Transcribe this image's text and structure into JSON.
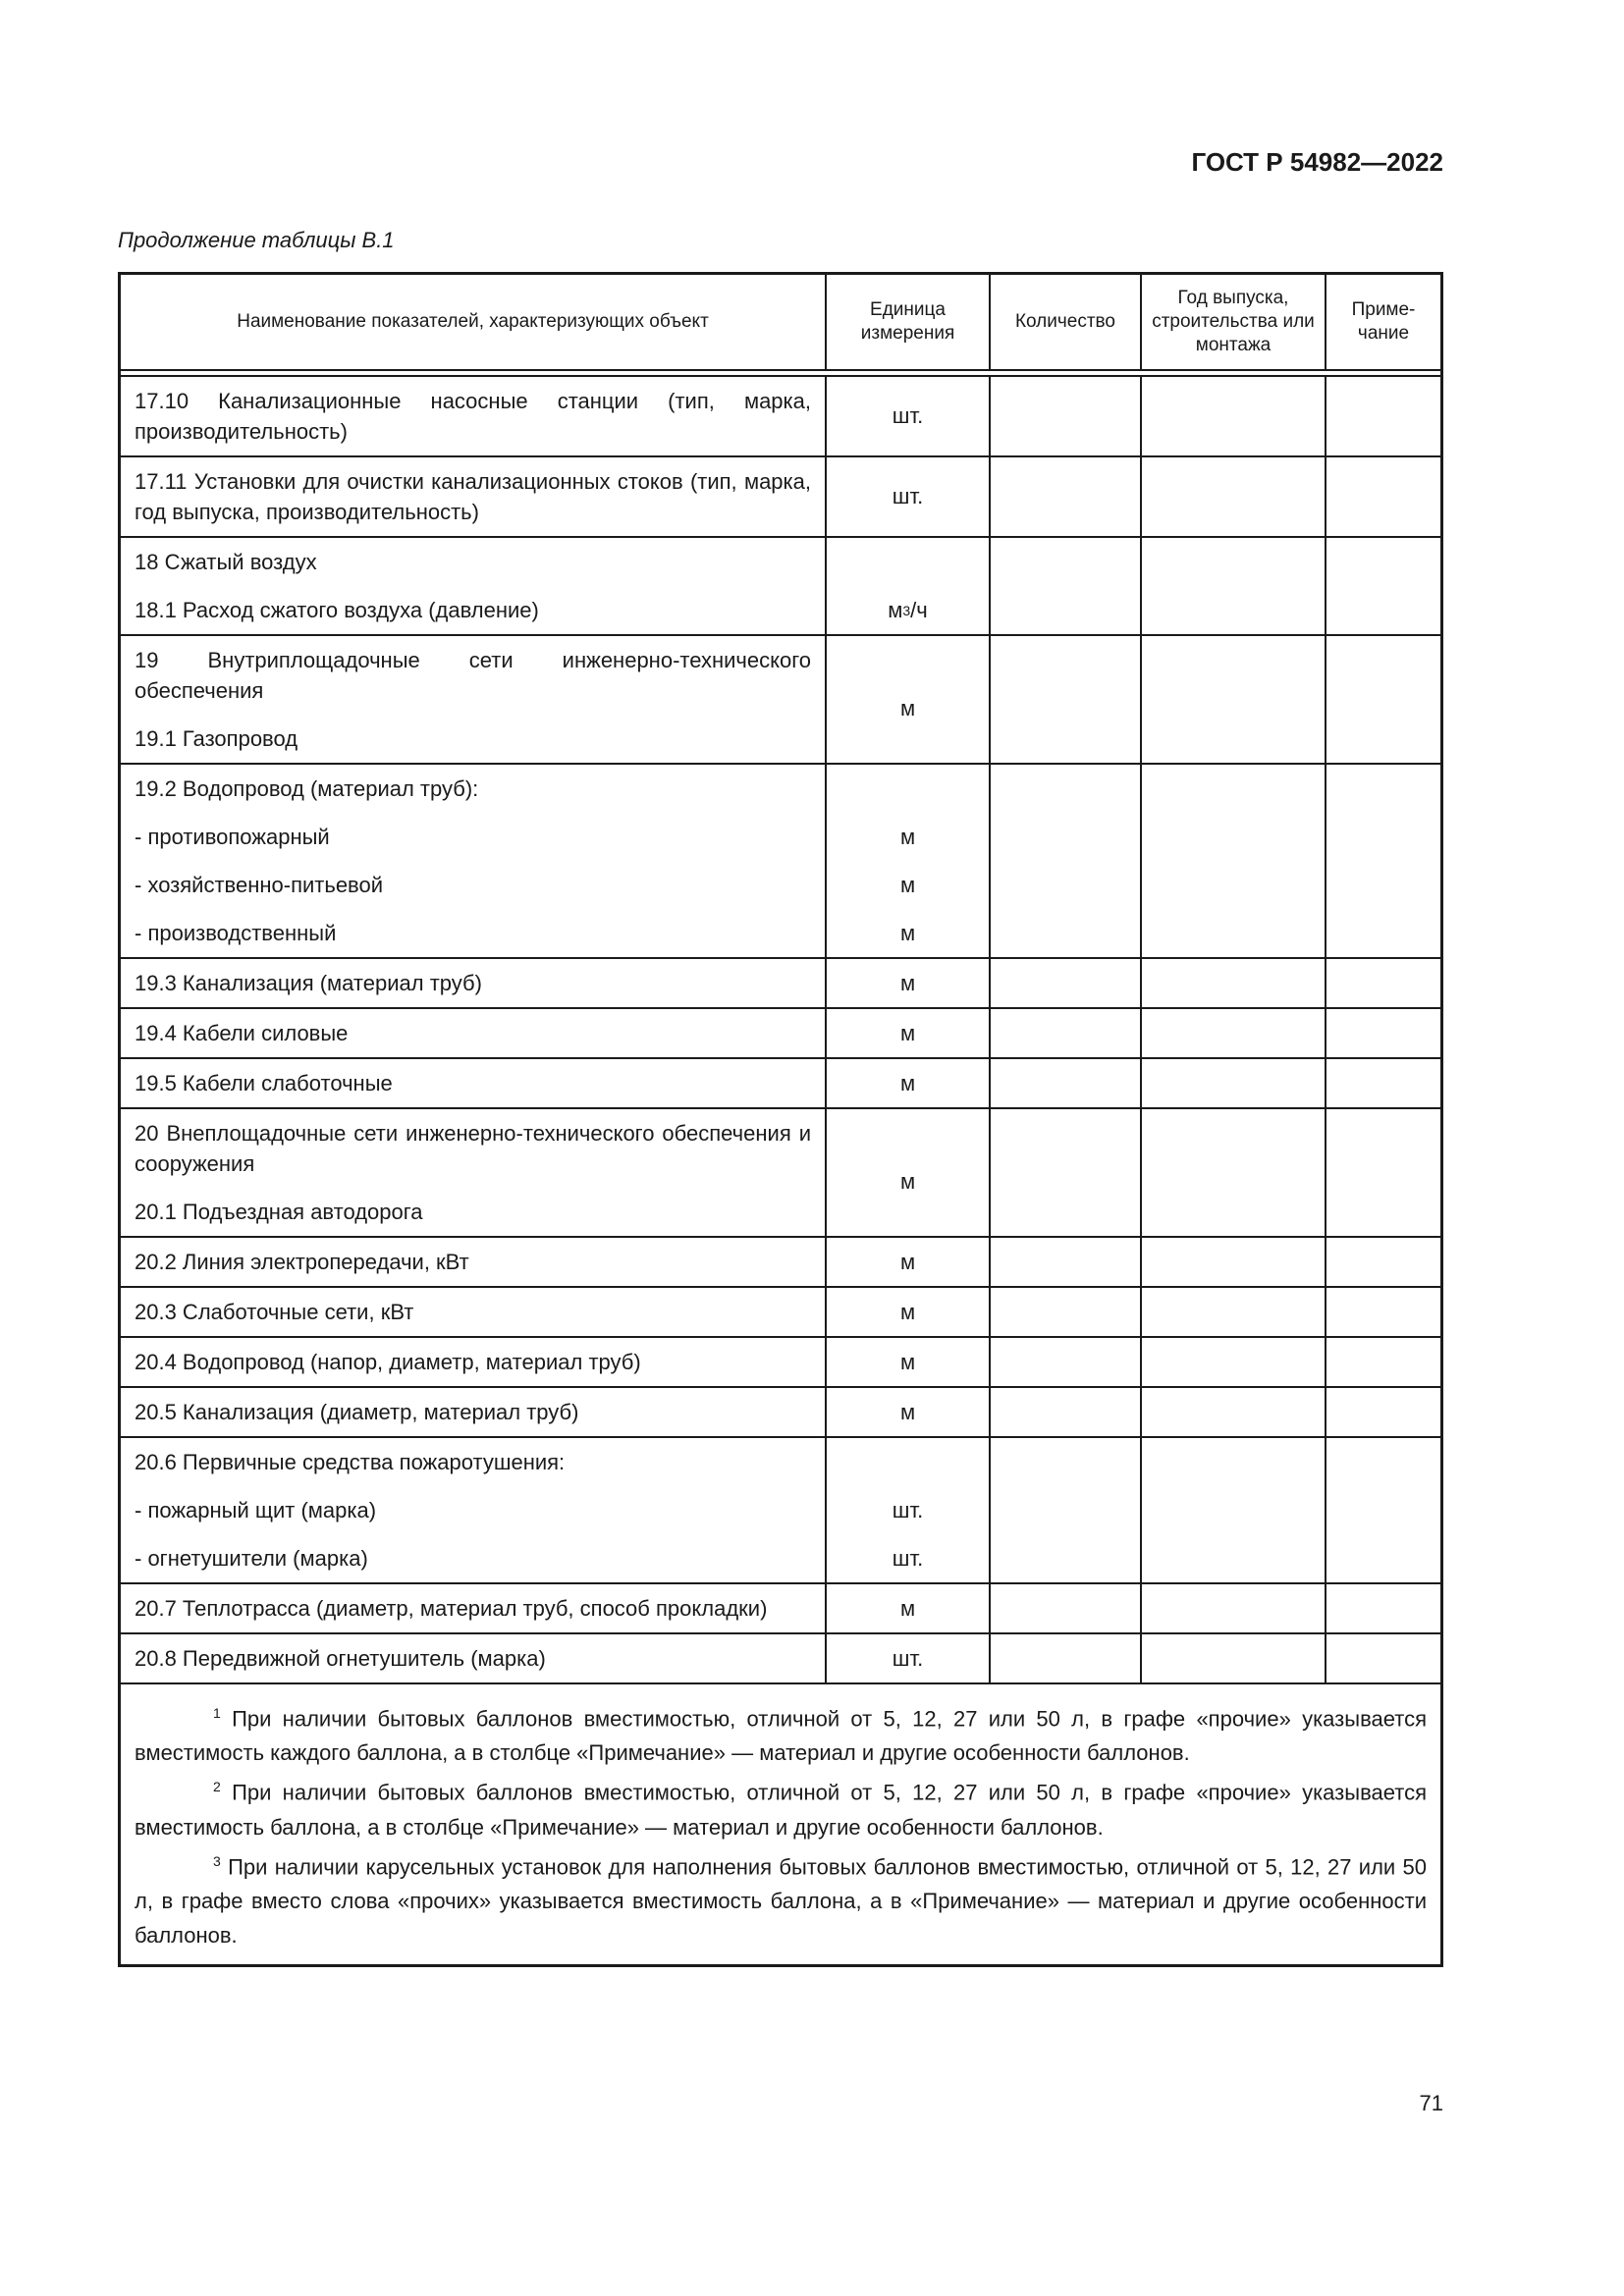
{
  "header": {
    "doc_code": "ГОСТ Р 54982—2022",
    "caption": "Продолжение таблицы В.1"
  },
  "table": {
    "columns": [
      "Наименование показателей, характеризующих объект",
      "Единица измерения",
      "Количество",
      "Год выпуска, строительства или монтажа",
      "Приме-чание"
    ],
    "rows": [
      {
        "items": [
          {
            "text": "17.10 Канализационные насосные станции (тип, марка, производительность)",
            "unit": "шт."
          }
        ]
      },
      {
        "items": [
          {
            "text": "17.11 Установки для очистки канализационных стоков (тип, марка, год выпуска, производительность)",
            "unit": "шт."
          }
        ]
      },
      {
        "items": [
          {
            "text": "18 Сжатый воздух",
            "unit": ""
          },
          {
            "text": "18.1 Расход сжатого воздуха (давление)",
            "unit": "м",
            "unit_sup": "3",
            "unit_tail": "/ч"
          }
        ]
      },
      {
        "items": [
          {
            "text": "19 Внутриплощадочные сети инженерно-технического обеспечения",
            "unit": ""
          },
          {
            "text": "19.1 Газопровод",
            "unit": "м"
          }
        ]
      },
      {
        "items": [
          {
            "text": "19.2 Водопровод (материал труб):",
            "unit": ""
          },
          {
            "text": "- противопожарный",
            "unit": "м"
          },
          {
            "text": "- хозяйственно-питьевой",
            "unit": "м"
          },
          {
            "text": "- производственный",
            "unit": "м"
          }
        ]
      },
      {
        "items": [
          {
            "text": "19.3 Канализация (материал труб)",
            "unit": "м"
          }
        ]
      },
      {
        "items": [
          {
            "text": "19.4 Кабели силовые",
            "unit": "м"
          }
        ]
      },
      {
        "items": [
          {
            "text": "19.5 Кабели слаботочные",
            "unit": "м"
          }
        ]
      },
      {
        "items": [
          {
            "text": "20 Внеплощадочные сети инженерно-технического обеспечения и сооружения",
            "unit": ""
          },
          {
            "text": "20.1 Подъездная автодорога",
            "unit": "м"
          }
        ]
      },
      {
        "items": [
          {
            "text": "20.2 Линия электропередачи, кВт",
            "unit": "м"
          }
        ]
      },
      {
        "items": [
          {
            "text": "20.3 Слаботочные сети, кВт",
            "unit": "м"
          }
        ]
      },
      {
        "items": [
          {
            "text": "20.4 Водопровод (напор, диаметр, материал труб)",
            "unit": "м"
          }
        ]
      },
      {
        "items": [
          {
            "text": "20.5 Канализация (диаметр, материал труб)",
            "unit": "м"
          }
        ]
      },
      {
        "items": [
          {
            "text": "20.6 Первичные средства пожаротушения:",
            "unit": ""
          },
          {
            "text": "- пожарный щит (марка)",
            "unit": "шт."
          },
          {
            "text": "- огнетушители (марка)",
            "unit": "шт."
          }
        ]
      },
      {
        "items": [
          {
            "text": "20.7 Теплотрасса (диаметр, материал труб, способ прокладки)",
            "unit": "м"
          }
        ]
      },
      {
        "items": [
          {
            "text": "20.8 Передвижной огнетушитель (марка)",
            "unit": "шт."
          }
        ]
      }
    ],
    "footnotes": [
      {
        "mark": "1",
        "text": " При наличии бытовых баллонов вместимостью, отличной от 5, 12, 27 или 50 л, в графе «прочие» указывается вместимость каждого баллона, а в столбце «Примечание» — материал и другие особенности баллонов."
      },
      {
        "mark": "2",
        "text": " При наличии бытовых баллонов вместимостью, отличной от 5, 12, 27 или 50 л, в графе «прочие» указывается вместимость баллона, а в столбце «Примечание» — материал и другие особенности баллонов."
      },
      {
        "mark": "3",
        "text": " При наличии карусельных установок для наполнения бытовых баллонов вместимостью, отличной от 5, 12, 27 или 50 л, в графе вместо слова «прочих» указывается вместимость баллона, а в «Примечание» — материал и другие особенности баллонов."
      }
    ]
  },
  "footer": {
    "page_number": "71"
  }
}
